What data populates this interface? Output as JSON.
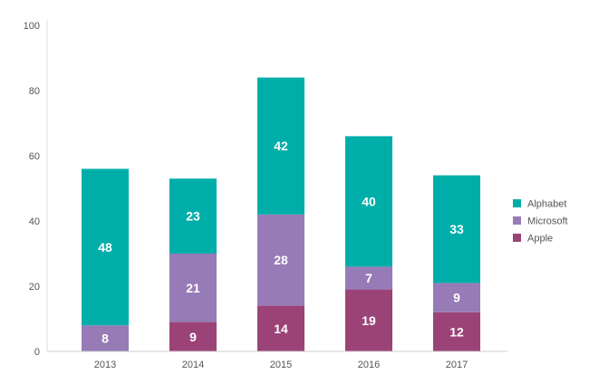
{
  "chart_data": {
    "type": "bar",
    "stacked": true,
    "categories": [
      "2013",
      "2014",
      "2015",
      "2016",
      "2017"
    ],
    "series": [
      {
        "name": "Apple",
        "color": "#9b4377",
        "values": [
          0,
          9,
          14,
          19,
          12
        ]
      },
      {
        "name": "Microsoft",
        "color": "#967bb6",
        "values": [
          8,
          21,
          28,
          7,
          9
        ]
      },
      {
        "name": "Alphabet",
        "color": "#00aea9",
        "values": [
          48,
          23,
          42,
          40,
          33
        ]
      }
    ],
    "title": "",
    "xlabel": "",
    "ylabel": "",
    "ylim": [
      0,
      100
    ],
    "yticks": [
      0,
      20,
      40,
      60,
      80,
      100
    ],
    "grid": false,
    "legend": {
      "position": "right",
      "order": [
        "Alphabet",
        "Microsoft",
        "Apple"
      ]
    }
  }
}
